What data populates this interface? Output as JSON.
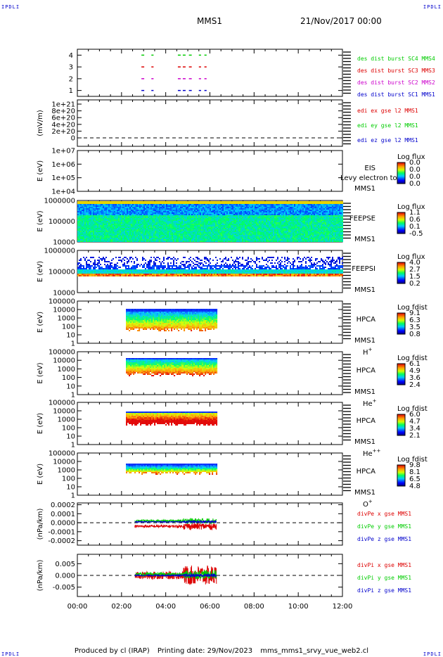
{
  "header": {
    "ipdl_label": "IPDLI",
    "mission": "MMS1",
    "date": "21/Nov/2017 00:00"
  },
  "footer": {
    "produced_by": "Produced by cl (IRAP)",
    "printing_date": "Printing date: 29/Nov/2023",
    "filename": "mms_mms1_srvy_vue_web2.cl"
  },
  "colors": {
    "mms1": "#0000cc",
    "mms2": "#cc00cc",
    "mms3": "#dd0000",
    "mms4": "#00cc00",
    "x_component": "#dd0000",
    "y_component": "#00cc00",
    "z_component": "#0000cc"
  },
  "chart_data": {
    "type": "multi-panel time series",
    "x_axis": {
      "range_hours": [
        0,
        12
      ],
      "ticks": [
        "00:00",
        "02:00",
        "04:00",
        "06:00",
        "08:00",
        "10:00",
        "12:00"
      ]
    },
    "panels": [
      {
        "id": "burst",
        "ylabel": "",
        "yticks": [
          "4",
          "3",
          "2",
          "1"
        ],
        "ylim": [
          0.5,
          4.5
        ],
        "series": [
          {
            "name": "des dist burst SC1 MMS1",
            "level": 1,
            "color_key": "mms1",
            "intervals": [
              [
                2.9,
                3.05
              ],
              [
                3.35,
                3.45
              ],
              [
                4.55,
                4.9
              ],
              [
                5.05,
                5.2
              ],
              [
                5.5,
                5.6
              ],
              [
                5.75,
                5.85
              ]
            ]
          },
          {
            "name": "des dist burst SC2 MMS2",
            "level": 2,
            "color_key": "mms2",
            "intervals": [
              [
                2.9,
                3.05
              ],
              [
                3.35,
                3.45
              ],
              [
                4.55,
                4.9
              ],
              [
                5.05,
                5.2
              ],
              [
                5.5,
                5.6
              ],
              [
                5.75,
                5.85
              ]
            ]
          },
          {
            "name": "des dist burst SC3 MMS3",
            "level": 3,
            "color_key": "mms3",
            "intervals": [
              [
                2.9,
                3.05
              ],
              [
                3.35,
                3.45
              ],
              [
                4.55,
                4.9
              ],
              [
                5.05,
                5.2
              ],
              [
                5.5,
                5.6
              ],
              [
                5.75,
                5.85
              ]
            ]
          },
          {
            "name": "des dist burst SC4 MMS4",
            "level": 4,
            "color_key": "mms4",
            "intervals": [
              [
                2.9,
                3.05
              ],
              [
                3.35,
                3.45
              ],
              [
                4.55,
                4.9
              ],
              [
                5.05,
                5.2
              ],
              [
                5.5,
                5.6
              ],
              [
                5.75,
                5.85
              ]
            ]
          }
        ]
      },
      {
        "id": "edi",
        "ylabel": "(mV/m)",
        "yticks": [
          "1e+21",
          "8e+20",
          "6e+20",
          "4e+20",
          "2e+20",
          "0"
        ],
        "zero_line": true,
        "legend": [
          "edi ex gse l2 MMS1",
          "edi ey gse l2 MMS1",
          "edi ez gse l2 MMS1"
        ]
      },
      {
        "id": "eis",
        "ylabel": "E (eV)",
        "yticks": [
          "1e+07",
          "1e+06",
          "1e+05",
          "1e+04"
        ],
        "instrument": [
          "EIS",
          "MMS1"
        ],
        "overlay_text": "Levy electron to",
        "colorbar": {
          "title": "Log flux",
          "labels": [
            "0.0",
            "0.0",
            "0.0",
            "0.0"
          ]
        }
      },
      {
        "id": "feepse",
        "ylabel": "E (eV)",
        "yticks": [
          "1000000",
          "100000",
          "10000"
        ],
        "instrument": [
          "FEEPSE",
          "MMS1"
        ],
        "coverage_hours": [
          0,
          12
        ],
        "colorbar": {
          "title": "Log flux",
          "labels": [
            "1.1",
            "0.6",
            "0.1",
            "-0.5"
          ]
        }
      },
      {
        "id": "feepsi",
        "ylabel": "E (eV)",
        "yticks": [
          "1000000",
          "100000",
          "10000"
        ],
        "instrument": [
          "FEEPSI",
          "MMS1"
        ],
        "coverage_hours": [
          0,
          12
        ],
        "colorbar": {
          "title": "Log flux",
          "labels": [
            "4.0",
            "2.7",
            "1.5",
            "0.2"
          ]
        }
      },
      {
        "id": "hpca_h",
        "ylabel": "E (eV)",
        "yticks": [
          "100000",
          "10000",
          "1000",
          "100",
          "10",
          "1"
        ],
        "instrument": [
          "HPCA",
          "MMS1"
        ],
        "species": "H",
        "species_sup": "+",
        "coverage_hours": [
          2.2,
          6.3
        ],
        "colorbar": {
          "title": "Log fdist",
          "labels": [
            "9.1",
            "6.3",
            "3.5",
            "0.8"
          ]
        }
      },
      {
        "id": "hpca_he",
        "ylabel": "E (eV)",
        "yticks": [
          "100000",
          "10000",
          "1000",
          "100",
          "10",
          "1"
        ],
        "instrument": [
          "HPCA",
          "MMS1"
        ],
        "species": "He",
        "species_sup": "+",
        "coverage_hours": [
          2.2,
          6.3
        ],
        "colorbar": {
          "title": "Log fdist",
          "labels": [
            "6.1",
            "4.9",
            "3.6",
            "2.4"
          ]
        }
      },
      {
        "id": "hpca_hepp",
        "ylabel": "E (eV)",
        "yticks": [
          "100000",
          "10000",
          "1000",
          "100",
          "10",
          "1"
        ],
        "instrument": [
          "HPCA",
          "MMS1"
        ],
        "species": "He",
        "species_sup": "++",
        "coverage_hours": [
          2.2,
          6.3
        ],
        "colorbar": {
          "title": "Log fdist",
          "labels": [
            "6.0",
            "4.7",
            "3.4",
            "2.1"
          ]
        }
      },
      {
        "id": "hpca_o",
        "ylabel": "E (eV)",
        "yticks": [
          "100000",
          "10000",
          "1000",
          "100",
          "10",
          "1"
        ],
        "instrument": [
          "HPCA",
          "MMS1"
        ],
        "species": "O",
        "species_sup": "+",
        "coverage_hours": [
          2.2,
          6.3
        ],
        "colorbar": {
          "title": "Log fdist",
          "labels": [
            "9.8",
            "8.1",
            "6.5",
            "4.8"
          ]
        }
      },
      {
        "id": "divpe",
        "ylabel": "(nPa/km)",
        "yticks": [
          "0.0002",
          "0.0001",
          "0.0000",
          "-0.0001",
          "-0.0002"
        ],
        "ylim": [
          -0.00025,
          0.00022
        ],
        "zero_line": true,
        "coverage_hours": [
          2.6,
          6.3
        ],
        "legend": [
          "divPe x gse MMS1",
          "divPe y gse MMS1",
          "divPe z gse MMS1"
        ]
      },
      {
        "id": "divpi",
        "ylabel": "(nPa/km)",
        "yticks": [
          "0.005",
          "0.000",
          "-0.005"
        ],
        "ylim": [
          -0.009,
          0.009
        ],
        "zero_line": true,
        "coverage_hours": [
          2.6,
          6.3
        ],
        "legend": [
          "divPi x gse MMS1",
          "divPi y gse MMS1",
          "divPi z gse MMS1"
        ]
      }
    ]
  }
}
